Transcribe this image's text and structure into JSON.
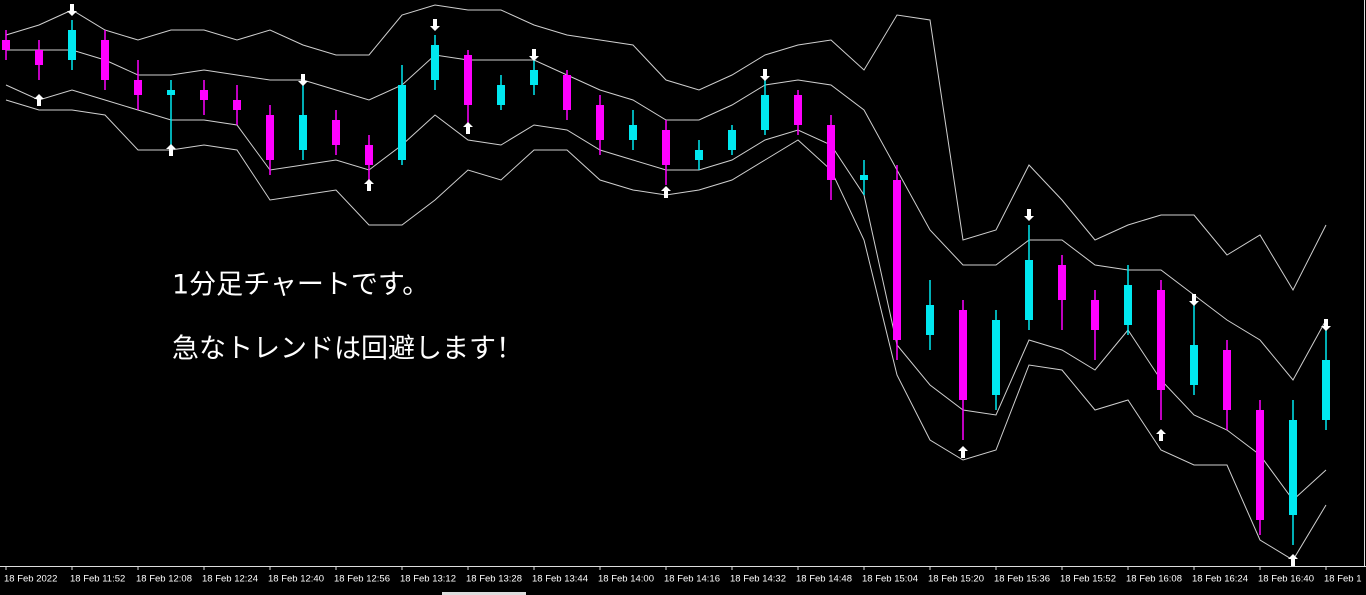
{
  "chart_data": {
    "type": "candlestick",
    "annotations": [
      "1分足チャートです。",
      "急なトレンドは回避します！"
    ],
    "categories": [
      "18 Feb 2022",
      null,
      "18 Feb 11:52",
      null,
      "18 Feb 12:08",
      null,
      "18 Feb 12:24",
      null,
      "18 Feb 12:40",
      null,
      "18 Feb 12:56",
      null,
      "18 Feb 13:12",
      null,
      "18 Feb 13:28",
      null,
      "18 Feb 13:44",
      null,
      "18 Feb 14:00",
      null,
      "18 Feb 14:16",
      null,
      "18 Feb 14:32",
      null,
      "18 Feb 14:48",
      null,
      "18 Feb 15:04",
      null,
      "18 Feb 15:20",
      null,
      "18 Feb 15:36",
      null,
      "18 Feb 15:52",
      null,
      "18 Feb 16:08",
      null,
      "18 Feb 16:24",
      null,
      "18 Feb 16:40",
      null,
      "18 Feb 1"
    ],
    "opens": [
      525,
      515,
      505,
      525,
      485,
      470,
      475,
      465,
      450,
      415,
      445,
      420,
      405,
      485,
      510,
      460,
      480,
      490,
      460,
      425,
      435,
      405,
      415,
      435,
      470,
      440,
      385,
      385,
      230,
      255,
      170,
      245,
      300,
      265,
      240,
      275,
      180,
      215,
      155,
      50,
      145
    ],
    "highs": [
      535,
      525,
      545,
      535,
      505,
      485,
      485,
      480,
      460,
      485,
      455,
      430,
      500,
      530,
      515,
      490,
      505,
      495,
      470,
      455,
      445,
      425,
      440,
      485,
      475,
      450,
      405,
      400,
      285,
      265,
      255,
      340,
      310,
      275,
      300,
      285,
      265,
      225,
      165,
      165,
      245
    ],
    "lows": [
      505,
      485,
      495,
      475,
      455,
      415,
      450,
      440,
      390,
      405,
      410,
      380,
      400,
      475,
      440,
      455,
      470,
      445,
      410,
      415,
      380,
      395,
      410,
      430,
      430,
      365,
      370,
      205,
      215,
      125,
      155,
      235,
      235,
      205,
      230,
      145,
      170,
      135,
      30,
      20,
      135
    ],
    "closes": [
      515,
      500,
      535,
      485,
      470,
      475,
      465,
      455,
      405,
      450,
      420,
      400,
      480,
      520,
      460,
      480,
      495,
      455,
      425,
      440,
      400,
      415,
      435,
      470,
      440,
      385,
      390,
      225,
      260,
      165,
      245,
      305,
      265,
      235,
      280,
      175,
      220,
      155,
      45,
      145,
      205
    ],
    "up_color": "#00e8f0",
    "down_color": "#ff00ff",
    "bands": [
      {
        "color": "#cfcfcf",
        "values": [
          530,
          540,
          555,
          535,
          525,
          535,
          535,
          525,
          535,
          520,
          510,
          510,
          550,
          560,
          555,
          555,
          540,
          530,
          525,
          520,
          485,
          475,
          490,
          510,
          520,
          525,
          495,
          550,
          545,
          325,
          335,
          400,
          365,
          325,
          340,
          350,
          350,
          310,
          330,
          275,
          340
        ]
      },
      {
        "color": "#cfcfcf",
        "values": [
          515,
          515,
          515,
          505,
          490,
          490,
          495,
          490,
          485,
          485,
          475,
          465,
          480,
          510,
          505,
          505,
          505,
          490,
          475,
          465,
          445,
          445,
          460,
          480,
          485,
          480,
          455,
          395,
          335,
          300,
          300,
          325,
          325,
          300,
          295,
          295,
          270,
          245,
          225,
          185,
          245
        ]
      },
      {
        "color": "#cfcfcf",
        "values": [
          480,
          465,
          475,
          465,
          455,
          445,
          445,
          440,
          395,
          400,
          405,
          395,
          420,
          450,
          425,
          420,
          440,
          435,
          415,
          405,
          395,
          395,
          405,
          425,
          435,
          420,
          370,
          220,
          180,
          155,
          150,
          225,
          215,
          195,
          235,
          185,
          150,
          135,
          110,
          65,
          95
        ]
      },
      {
        "color": "#cfcfcf",
        "values": [
          465,
          455,
          455,
          450,
          415,
          415,
          420,
          415,
          365,
          370,
          375,
          340,
          340,
          365,
          395,
          385,
          415,
          415,
          385,
          375,
          370,
          375,
          385,
          405,
          425,
          395,
          325,
          190,
          125,
          105,
          115,
          200,
          195,
          155,
          165,
          115,
          100,
          100,
          25,
          5,
          60
        ]
      }
    ],
    "buy_arrows": [
      null,
      465,
      null,
      null,
      null,
      415,
      null,
      null,
      null,
      null,
      null,
      380,
      null,
      null,
      437,
      null,
      null,
      null,
      null,
      null,
      373,
      null,
      null,
      null,
      null,
      null,
      null,
      null,
      null,
      113,
      null,
      null,
      null,
      null,
      null,
      130,
      null,
      null,
      null,
      5,
      null
    ],
    "sell_arrows": [
      null,
      null,
      555,
      null,
      null,
      null,
      null,
      null,
      null,
      485,
      null,
      null,
      null,
      540,
      null,
      null,
      510,
      null,
      null,
      null,
      null,
      null,
      null,
      490,
      null,
      null,
      null,
      null,
      null,
      null,
      null,
      350,
      null,
      null,
      null,
      null,
      265,
      null,
      null,
      null,
      240
    ],
    "arrow_color": "#ffffff",
    "ylim": [
      0,
      565
    ]
  }
}
